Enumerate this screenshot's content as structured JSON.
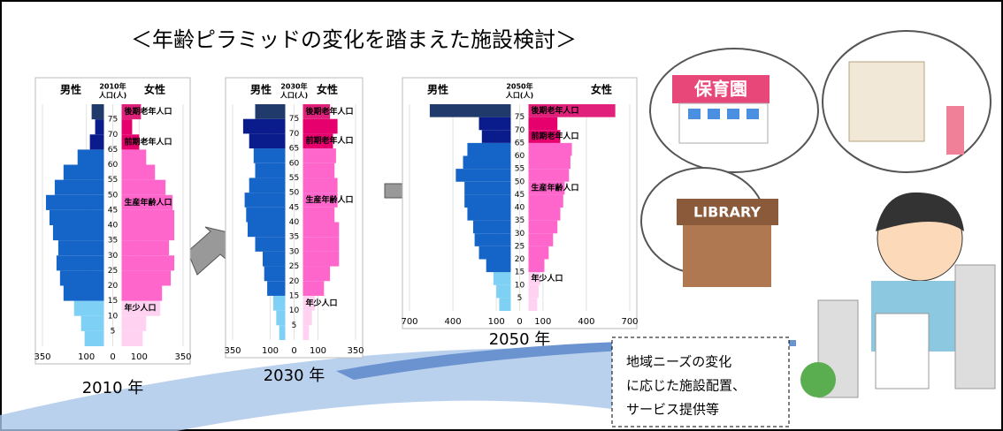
{
  "title": "＜年齢ピラミッドの変化を踏まえた施設検討＞",
  "note": [
    "地域ニーズの変化",
    "に応じた施設配置、",
    "サービス提供等"
  ],
  "illustration_labels": [
    "保育園",
    "LIBRARY"
  ],
  "chart_data": [
    {
      "type": "pyramid",
      "year_label": "2010 年",
      "unit_label": [
        "2010年",
        "人口(人)"
      ],
      "categories": [
        null,
        "5",
        "10",
        "15",
        "20",
        "25",
        "30",
        "35",
        "40",
        "45",
        "50",
        "55",
        "60",
        "65",
        "70",
        "75"
      ],
      "group_labels": [
        "後期老年人口",
        "前期老年人口",
        "生産年齢人口",
        "年少人口"
      ],
      "xlim": [
        -350,
        350
      ],
      "xticks": [
        {
          "value": -350,
          "label": "350"
        },
        {
          "value": -100,
          "label": "100"
        },
        0,
        100,
        350
      ],
      "grid": true,
      "series": [
        {
          "name": "男性",
          "colors": [
            "#7fd0f5",
            "#7fd0f5",
            "#7fd0f5",
            "#1565c8",
            "#1565c8",
            "#1565c8",
            "#1565c8",
            "#1565c8",
            "#1565c8",
            "#1565c8",
            "#1565c8",
            "#1565c8",
            "#1565c8",
            "#0a1c8c",
            "#0a1c8c",
            "#1f3a6b"
          ],
          "values": [
            110,
            130,
            170,
            230,
            250,
            270,
            260,
            290,
            310,
            330,
            280,
            230,
            150,
            80,
            50,
            70
          ]
        },
        {
          "name": "女性",
          "colors": [
            "#ffd2f2",
            "#ffd2f2",
            "#ffd2f2",
            "#ff66cc",
            "#ff66cc",
            "#ff66cc",
            "#ff66cc",
            "#ff66cc",
            "#ff66cc",
            "#ff66cc",
            "#ff66cc",
            "#ff66cc",
            "#ff66cc",
            "#e6006e",
            "#e6006e",
            "#e0207a"
          ],
          "values": [
            120,
            140,
            220,
            230,
            280,
            300,
            270,
            300,
            300,
            290,
            250,
            190,
            140,
            100,
            60,
            110
          ]
        }
      ]
    },
    {
      "type": "pyramid",
      "year_label": "2030 年",
      "unit_label": [
        "2030年",
        "人口(人)"
      ],
      "categories": [
        null,
        "5",
        "10",
        "15",
        "20",
        "25",
        "30",
        "35",
        "40",
        "45",
        "50",
        "55",
        "60",
        "65",
        "70",
        "75"
      ],
      "group_labels": [
        "後期老年人口",
        "前期老年人口",
        "生産年齢人口",
        "年少人口"
      ],
      "xlim": [
        -350,
        350
      ],
      "xticks": [
        {
          "value": -350,
          "label": "350"
        },
        {
          "value": -100,
          "label": "100"
        },
        0,
        100,
        350
      ],
      "grid": true,
      "series": [
        {
          "name": "男性",
          "colors": [
            "#7fd0f5",
            "#7fd0f5",
            "#7fd0f5",
            "#1565c8",
            "#1565c8",
            "#1565c8",
            "#1565c8",
            "#1565c8",
            "#1565c8",
            "#1565c8",
            "#1565c8",
            "#1565c8",
            "#1565c8",
            "#0a1c8c",
            "#0a1c8c",
            "#1f3a6b"
          ],
          "values": [
            40,
            60,
            80,
            120,
            140,
            150,
            200,
            250,
            260,
            270,
            240,
            200,
            210,
            240,
            280,
            200
          ]
        },
        {
          "name": "女性",
          "colors": [
            "#ffd2f2",
            "#ffd2f2",
            "#ffd2f2",
            "#ff66cc",
            "#ff66cc",
            "#ff66cc",
            "#ff66cc",
            "#ff66cc",
            "#ff66cc",
            "#ff66cc",
            "#ff66cc",
            "#ff66cc",
            "#ff66cc",
            "#e6006e",
            "#e6006e",
            "#e0207a"
          ],
          "values": [
            40,
            60,
            80,
            140,
            180,
            240,
            240,
            240,
            210,
            230,
            230,
            210,
            220,
            200,
            230,
            180
          ]
        }
      ]
    },
    {
      "type": "pyramid",
      "year_label": "2050 年",
      "unit_label": [
        "2050年",
        "人口(人)"
      ],
      "categories": [
        null,
        "5",
        "10",
        "15",
        "20",
        "25",
        "30",
        "35",
        "40",
        "45",
        "50",
        "55",
        "60",
        "65",
        "70",
        "75"
      ],
      "group_labels": [
        "後期老年人口",
        "前期老年人口",
        "生産年齢人口",
        "年少人口"
      ],
      "xlim": [
        -700,
        700
      ],
      "xticks": [
        {
          "value": -700,
          "label": "700"
        },
        {
          "value": -400,
          "label": "400"
        },
        {
          "value": -100,
          "label": "100"
        },
        0,
        100,
        400,
        700
      ],
      "grid": true,
      "series": [
        {
          "name": "男性",
          "colors": [
            "#7fd0f5",
            "#7fd0f5",
            "#7fd0f5",
            "#1565c8",
            "#1565c8",
            "#1565c8",
            "#1565c8",
            "#1565c8",
            "#1565c8",
            "#1565c8",
            "#1565c8",
            "#1565c8",
            "#1565c8",
            "#0a1c8c",
            "#0a1c8c",
            "#1f3a6b"
          ],
          "values": [
            80,
            100,
            120,
            170,
            220,
            250,
            260,
            300,
            320,
            320,
            380,
            330,
            300,
            200,
            220,
            560
          ]
        },
        {
          "name": "女性",
          "colors": [
            "#ffd2f2",
            "#ffd2f2",
            "#ffd2f2",
            "#ff66cc",
            "#ff66cc",
            "#ff66cc",
            "#ff66cc",
            "#ff66cc",
            "#ff66cc",
            "#ff66cc",
            "#ff66cc",
            "#ff66cc",
            "#ff66cc",
            "#e6006e",
            "#e6006e",
            "#e0207a"
          ],
          "values": [
            60,
            70,
            80,
            110,
            140,
            170,
            200,
            220,
            240,
            250,
            280,
            290,
            300,
            220,
            200,
            600
          ]
        }
      ]
    }
  ]
}
